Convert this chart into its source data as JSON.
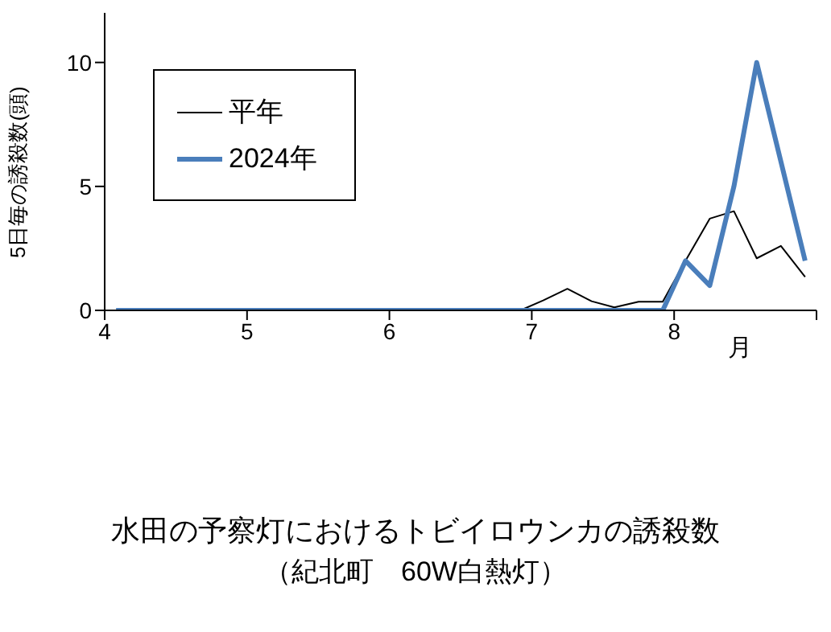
{
  "chart_data": {
    "type": "line",
    "title": "水田の予察灯におけるトビイロウンカの誘殺数",
    "subtitle": "（紀北町　60W白熱灯）",
    "xlabel": "月",
    "ylabel": "5日毎の誘殺数(頭)",
    "x": [
      4.08,
      4.25,
      4.42,
      4.58,
      4.75,
      4.92,
      5.08,
      5.25,
      5.42,
      5.58,
      5.75,
      5.92,
      6.08,
      6.25,
      6.42,
      6.58,
      6.75,
      6.92,
      7.08,
      7.25,
      7.42,
      7.58,
      7.75,
      7.92,
      8.08,
      8.25,
      8.42,
      8.58,
      8.75,
      8.92
    ],
    "series": [
      {
        "name": "平年",
        "color": "#000000",
        "values": [
          0,
          0,
          0,
          0,
          0,
          0,
          0,
          0,
          0,
          0,
          0,
          0,
          0,
          0,
          0,
          0,
          0,
          0,
          0.4,
          0.87,
          0.37,
          0.12,
          0.35,
          0.35,
          2.0,
          3.7,
          4.0,
          2.1,
          2.6,
          1.35
        ]
      },
      {
        "name": "2024年",
        "color": "#4a7ebb",
        "values": [
          0,
          0,
          0,
          0,
          0,
          0,
          0,
          0,
          0,
          0,
          0,
          0,
          0,
          0,
          0,
          0,
          0,
          0,
          0,
          0,
          0,
          0,
          0,
          0,
          2.0,
          1.0,
          5.0,
          10.0,
          6.0,
          2.0
        ]
      }
    ],
    "xlim": [
      4,
      9
    ],
    "xticks": [
      4,
      5,
      6,
      7,
      8,
      {
        "value": 9,
        "label": null
      }
    ],
    "ylim": [
      0,
      12
    ],
    "yticks": [
      0,
      5,
      10
    ],
    "grid": false,
    "legend": "top left",
    "marker": "none",
    "line_style": "solid"
  }
}
